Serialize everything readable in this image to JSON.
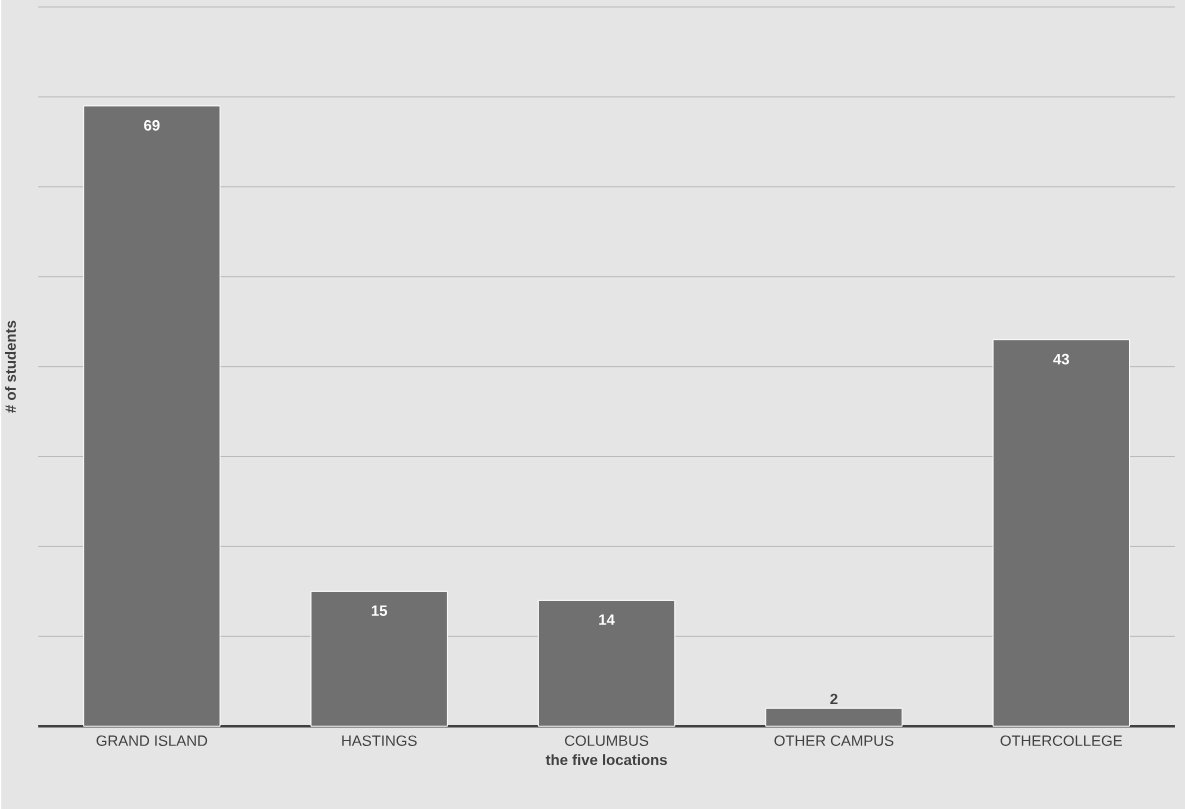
{
  "chart_data": {
    "type": "bar",
    "xlabel": "the five locations",
    "ylabel": "# of students",
    "categories": [
      "GRAND ISLAND",
      "HASTINGS",
      "COLUMBUS",
      "OTHER CAMPUS",
      "OTHERCOLLEGE"
    ],
    "values": [
      69,
      15,
      14,
      2,
      43
    ],
    "color": "#707070",
    "ylim": [
      0,
      80
    ],
    "yticks": [
      {
        "value": 0,
        "label": null
      },
      {
        "value": 10,
        "label": null
      },
      {
        "value": 20,
        "label": null
      },
      {
        "value": 30,
        "label": null
      },
      {
        "value": 40,
        "label": null
      },
      {
        "value": 50,
        "label": null
      },
      {
        "value": 60,
        "label": null
      },
      {
        "value": 70,
        "label": null
      },
      {
        "value": 80,
        "label": null
      }
    ],
    "grid": "y",
    "tick_labels": "x",
    "data_labels": true
  }
}
